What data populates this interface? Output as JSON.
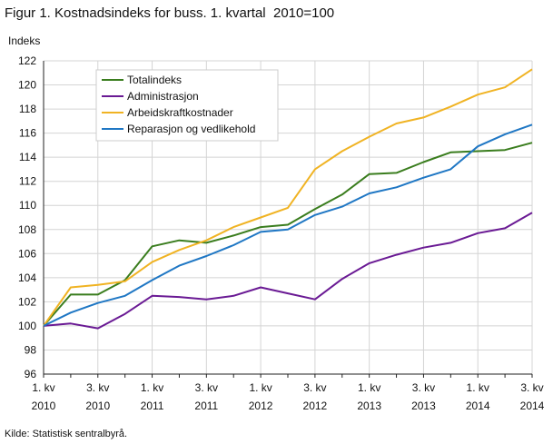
{
  "chart_data": {
    "type": "line",
    "title": "Figur 1. Kostnadsindeks for buss. 1. kvartal  2010=100",
    "ylabel": "Indeks",
    "xlabel": "",
    "ylim": [
      96,
      122
    ],
    "yticks": [
      96,
      98,
      100,
      102,
      104,
      106,
      108,
      110,
      112,
      114,
      116,
      118,
      120,
      122
    ],
    "grid": true,
    "legend_position": "top-left",
    "x": [
      "1. kv 2010",
      "2. kv 2010",
      "3. kv 2010",
      "4. kv 2010",
      "1. kv 2011",
      "2. kv 2011",
      "3. kv 2011",
      "4. kv 2011",
      "1. kv 2012",
      "2. kv 2012",
      "3. kv 2012",
      "4. kv 2012",
      "1. kv 2013",
      "2. kv 2013",
      "3. kv 2013",
      "4. kv 2013",
      "1. kv 2014",
      "2. kv 2014",
      "3. kv 2014"
    ],
    "x_tick_labels": [
      {
        "index": 0,
        "line1": "1. kv",
        "line2": "2010"
      },
      {
        "index": 2,
        "line1": "3. kv",
        "line2": "2010"
      },
      {
        "index": 4,
        "line1": "1. kv",
        "line2": "2011"
      },
      {
        "index": 6,
        "line1": "3. kv",
        "line2": "2011"
      },
      {
        "index": 8,
        "line1": "1. kv",
        "line2": "2012"
      },
      {
        "index": 10,
        "line1": "3. kv",
        "line2": "2012"
      },
      {
        "index": 12,
        "line1": "1. kv",
        "line2": "2013"
      },
      {
        "index": 14,
        "line1": "3. kv",
        "line2": "2013"
      },
      {
        "index": 16,
        "line1": "1. kv",
        "line2": "2014"
      },
      {
        "index": 18,
        "line1": "3. kv",
        "line2": "2014"
      }
    ],
    "series": [
      {
        "name": "Totalindeks",
        "color": "#3a7d1e",
        "values": [
          100.0,
          102.6,
          102.6,
          103.8,
          106.6,
          107.1,
          106.9,
          107.5,
          108.2,
          108.4,
          109.7,
          110.9,
          112.6,
          112.7,
          113.6,
          114.4,
          114.5,
          114.6,
          115.2
        ]
      },
      {
        "name": "Administrasjon",
        "color": "#6a1a94",
        "values": [
          100.0,
          100.2,
          99.8,
          101.0,
          102.5,
          102.4,
          102.2,
          102.5,
          103.2,
          102.7,
          102.2,
          103.9,
          105.2,
          105.9,
          106.5,
          106.9,
          107.7,
          108.1,
          109.4
        ]
      },
      {
        "name": "Arbeidskraftkostnader",
        "color": "#f0b323",
        "values": [
          100.0,
          103.2,
          103.4,
          103.7,
          105.3,
          106.3,
          107.1,
          108.2,
          109.0,
          109.8,
          113.0,
          114.5,
          115.7,
          116.8,
          117.3,
          118.2,
          119.2,
          119.8,
          121.3
        ]
      },
      {
        "name": "Reparasjon og vedlikehold",
        "color": "#1f77c4",
        "values": [
          100.0,
          101.1,
          101.9,
          102.5,
          103.8,
          105.0,
          105.8,
          106.7,
          107.8,
          108.0,
          109.2,
          109.9,
          111.0,
          111.5,
          112.3,
          113.0,
          114.9,
          115.9,
          116.7
        ]
      }
    ]
  },
  "footer": {
    "source": "Kilde: Statistisk sentralbyrå."
  }
}
